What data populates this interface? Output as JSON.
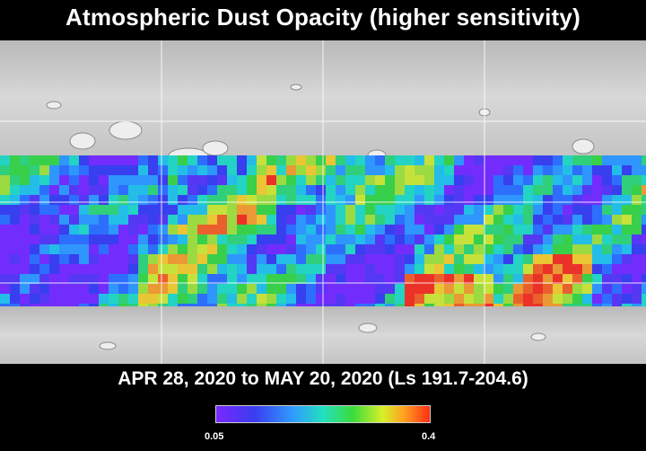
{
  "title": "Atmospheric Dust Opacity (higher sensitivity)",
  "date_range": "APR 28, 2020 to MAY 20, 2020 (Ls 191.7-204.6)",
  "colorbar": {
    "min_label": "0.05",
    "max_label": "0.4"
  },
  "colors": {
    "background": "#000000",
    "low": "#7a28ff",
    "mid": "#22e0c0",
    "high": "#ff2e14"
  }
}
